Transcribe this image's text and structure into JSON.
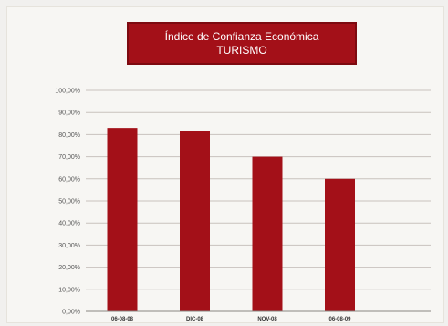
{
  "chart_data": {
    "type": "bar",
    "title": "Índice de Confianza Económica",
    "subtitle": "TURISMO",
    "categories": [
      "06-08-08",
      "DIC-08",
      "NOV-08",
      "06-08-09"
    ],
    "values": [
      83,
      81.5,
      70,
      60
    ],
    "ylim": [
      0,
      100
    ],
    "y_tick_values": [
      0,
      10,
      20,
      30,
      40,
      50,
      60,
      70,
      80,
      90,
      100
    ],
    "y_tick_labels": [
      "0,00%",
      "10,00%",
      "20,00%",
      "30,00%",
      "40,00%",
      "50,00%",
      "60,00%",
      "70,00%",
      "80,00%",
      "90,00%",
      "100,00%"
    ],
    "grid": true,
    "legend": "none",
    "colors": {
      "bar": "#a31018",
      "grid": "#c8c2bd",
      "title_bg": "#a31018",
      "title_text": "#ffffff"
    }
  }
}
